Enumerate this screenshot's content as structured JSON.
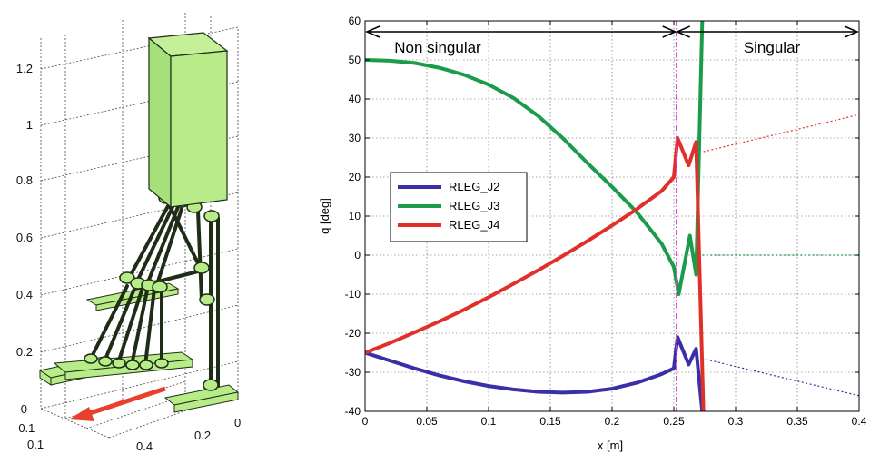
{
  "robot_figure": {
    "z_ticks": [
      "0",
      "0.2",
      "0.4",
      "0.6",
      "0.8",
      "1",
      "1.2"
    ],
    "x_ticks": [
      "-0.1",
      "0.1",
      "0.4"
    ],
    "y_ticks": [
      "0.2",
      "0"
    ],
    "colors": {
      "body": "#b7ec88",
      "frame": "#1f2d17",
      "arrow": "#e8402a"
    }
  },
  "chart_data": {
    "type": "line",
    "title": "",
    "xlabel": "x [m]",
    "ylabel": "q [deg]",
    "xlim": [
      0,
      0.4
    ],
    "ylim": [
      -40,
      60
    ],
    "x_ticks": [
      "0",
      "0.05",
      "0.1",
      "0.15",
      "0.2",
      "0.25",
      "0.3",
      "0.35",
      "0.4"
    ],
    "y_ticks": [
      "-40",
      "-30",
      "-20",
      "-10",
      "0",
      "10",
      "20",
      "30",
      "40",
      "50",
      "60"
    ],
    "grid": true,
    "legend_position": "left-middle",
    "singular_x": 0.252,
    "annotations": {
      "non_singular": "Non singular",
      "singular": "Singular"
    },
    "series": [
      {
        "name": "RLEG_J2",
        "color": "#3a2fa8",
        "points": [
          [
            0,
            -25
          ],
          [
            0.02,
            -27
          ],
          [
            0.04,
            -29
          ],
          [
            0.06,
            -30.8
          ],
          [
            0.08,
            -32.3
          ],
          [
            0.1,
            -33.5
          ],
          [
            0.12,
            -34.4
          ],
          [
            0.14,
            -35
          ],
          [
            0.16,
            -35.2
          ],
          [
            0.18,
            -35
          ],
          [
            0.2,
            -34.2
          ],
          [
            0.22,
            -32.7
          ],
          [
            0.24,
            -30.5
          ],
          [
            0.25,
            -29
          ],
          [
            0.253,
            -21
          ],
          [
            0.262,
            -28
          ],
          [
            0.268,
            -24
          ],
          [
            0.273,
            -40
          ]
        ],
        "extrapolation": [
          [
            0.273,
            -26.5
          ],
          [
            0.4,
            -36
          ]
        ]
      },
      {
        "name": "RLEG_J3",
        "color": "#1a9c4a",
        "points": [
          [
            0,
            50
          ],
          [
            0.02,
            49.8
          ],
          [
            0.04,
            49.2
          ],
          [
            0.06,
            48
          ],
          [
            0.08,
            46.2
          ],
          [
            0.1,
            43.7
          ],
          [
            0.12,
            40.3
          ],
          [
            0.14,
            35.7
          ],
          [
            0.16,
            30
          ],
          [
            0.18,
            23.6
          ],
          [
            0.2,
            17.5
          ],
          [
            0.22,
            11
          ],
          [
            0.24,
            3
          ],
          [
            0.25,
            -3
          ],
          [
            0.254,
            -10
          ],
          [
            0.263,
            5
          ],
          [
            0.268,
            -5
          ],
          [
            0.273,
            60
          ]
        ],
        "extrapolation": [
          [
            0.273,
            0
          ],
          [
            0.4,
            0
          ]
        ]
      },
      {
        "name": "RLEG_J4",
        "color": "#e0302a",
        "points": [
          [
            0,
            -25
          ],
          [
            0.02,
            -22.5
          ],
          [
            0.04,
            -19.8
          ],
          [
            0.06,
            -17
          ],
          [
            0.08,
            -14
          ],
          [
            0.1,
            -10.8
          ],
          [
            0.12,
            -7.4
          ],
          [
            0.14,
            -3.9
          ],
          [
            0.16,
            -0.2
          ],
          [
            0.18,
            3.6
          ],
          [
            0.2,
            7.6
          ],
          [
            0.22,
            11.8
          ],
          [
            0.24,
            16.4
          ],
          [
            0.25,
            20
          ],
          [
            0.253,
            30
          ],
          [
            0.262,
            23
          ],
          [
            0.268,
            29
          ],
          [
            0.274,
            -40
          ]
        ],
        "extrapolation": [
          [
            0.274,
            26.5
          ],
          [
            0.4,
            36
          ]
        ]
      }
    ]
  }
}
